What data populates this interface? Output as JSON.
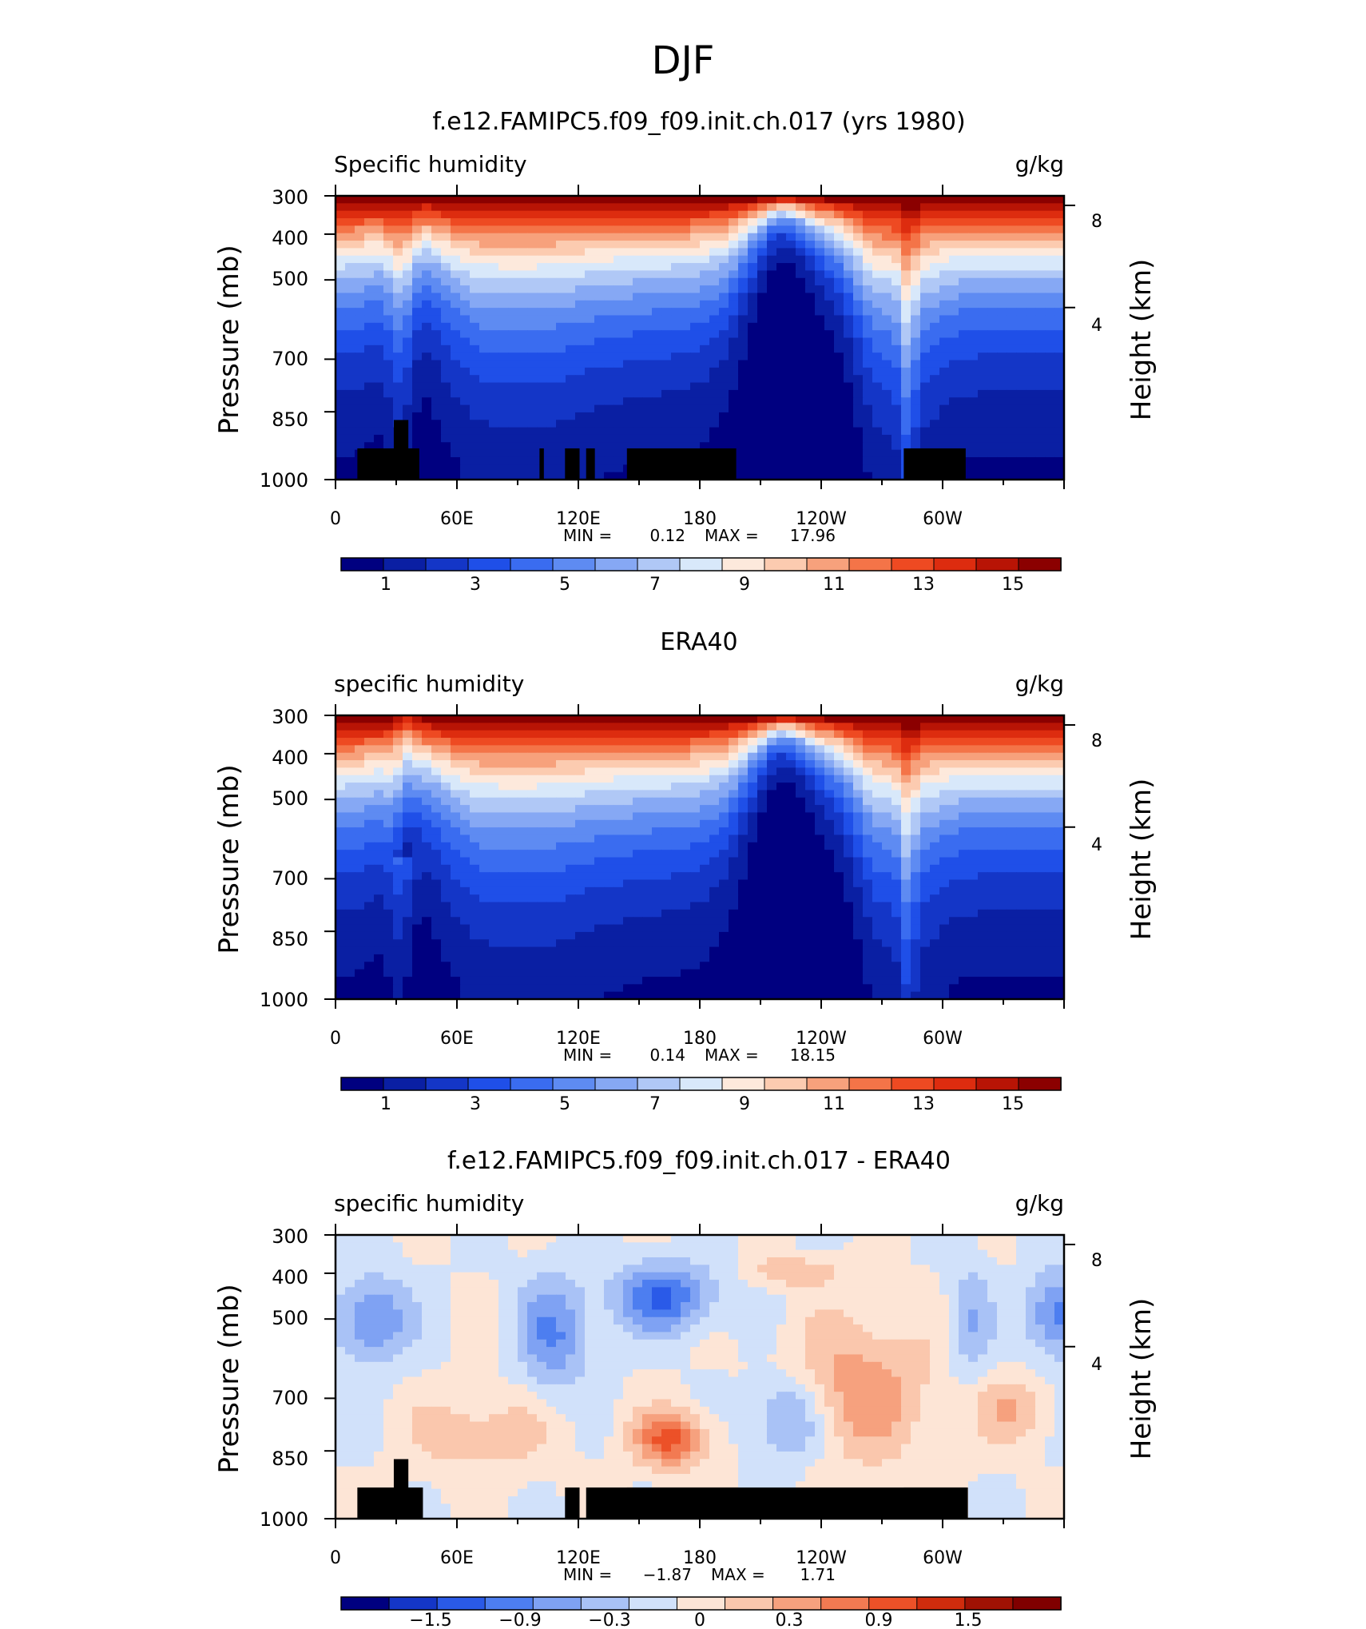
{
  "main_title": "DJF",
  "colors": {
    "abs_scale": [
      "#000080",
      "#0a1fa3",
      "#1436c7",
      "#1f4fe8",
      "#3a6cf0",
      "#5e8bf2",
      "#86a8f4",
      "#b0c8f6",
      "#d8e8fa",
      "#fde9dc",
      "#fccbb0",
      "#f7a17c",
      "#f47448",
      "#ee4a22",
      "#dd2c0f",
      "#b81405",
      "#8b0000"
    ],
    "diff_scale": [
      "#000080",
      "#1436c7",
      "#2a5ae8",
      "#4d7ef0",
      "#7fa2f3",
      "#a9c2f6",
      "#d1e1fa",
      "#fde5d6",
      "#fac7ad",
      "#f6a17e",
      "#f27a52",
      "#ec5128",
      "#d02c0d",
      "#a01204",
      "#800000"
    ],
    "terrain": "#000000"
  },
  "chart_data": [
    {
      "type": "heatmap",
      "title": "f.e12.FAMIPC5.f09_f09.init.ch.017 (yrs 1980)",
      "left_string": "Specific humidity",
      "right_string": "g/kg",
      "ylabel": "Pressure (mb)",
      "ylabel_right": "Height (km)",
      "xticks": [
        "0",
        "60E",
        "120E",
        "180",
        "120W",
        "60W"
      ],
      "yticks": [
        "300",
        "400",
        "500",
        "700",
        "850",
        "1000"
      ],
      "yticks_right": [
        "8",
        "4"
      ],
      "stats": {
        "min_label": "MIN =",
        "min": "0.12",
        "max_label": "MAX =",
        "max": "17.96"
      },
      "levels": [
        1,
        2,
        3,
        4,
        5,
        6,
        7,
        8,
        9,
        10,
        11,
        12,
        13,
        14,
        15,
        16
      ],
      "colorbar_labels": [
        "1",
        "3",
        "5",
        "7",
        "9",
        "11",
        "13",
        "15"
      ],
      "range": [
        0.12,
        17.96
      ]
    },
    {
      "type": "heatmap",
      "title": "ERA40",
      "left_string": "specific humidity",
      "right_string": "g/kg",
      "ylabel": "Pressure (mb)",
      "ylabel_right": "Height (km)",
      "xticks": [
        "0",
        "60E",
        "120E",
        "180",
        "120W",
        "60W"
      ],
      "yticks": [
        "300",
        "400",
        "500",
        "700",
        "850",
        "1000"
      ],
      "yticks_right": [
        "8",
        "4"
      ],
      "stats": {
        "min_label": "MIN =",
        "min": "0.14",
        "max_label": "MAX =",
        "max": "18.15"
      },
      "levels": [
        1,
        2,
        3,
        4,
        5,
        6,
        7,
        8,
        9,
        10,
        11,
        12,
        13,
        14,
        15,
        16
      ],
      "colorbar_labels": [
        "1",
        "3",
        "5",
        "7",
        "9",
        "11",
        "13",
        "15"
      ],
      "range": [
        0.14,
        18.15
      ]
    },
    {
      "type": "heatmap",
      "title": "f.e12.FAMIPC5.f09_f09.init.ch.017 - ERA40",
      "left_string": "specific humidity",
      "right_string": "g/kg",
      "ylabel": "Pressure (mb)",
      "ylabel_right": "Height (km)",
      "xticks": [
        "0",
        "60E",
        "120E",
        "180",
        "120W",
        "60W"
      ],
      "yticks": [
        "300",
        "400",
        "500",
        "700",
        "850",
        "1000"
      ],
      "yticks_right": [
        "8",
        "4"
      ],
      "stats": {
        "min_label": "MIN =",
        "min": "−1.87",
        "max_label": "MAX =",
        "max": "1.71"
      },
      "levels": [
        -1.8,
        -1.5,
        -1.2,
        -0.9,
        -0.6,
        -0.3,
        0,
        0.3,
        0.6,
        0.9,
        1.2,
        1.5,
        1.8
      ],
      "colorbar_labels": [
        "−1.5",
        "−0.9",
        "−0.3",
        "0",
        "0.3",
        "0.9",
        "1.5"
      ],
      "range": [
        -1.87,
        1.71
      ]
    }
  ]
}
